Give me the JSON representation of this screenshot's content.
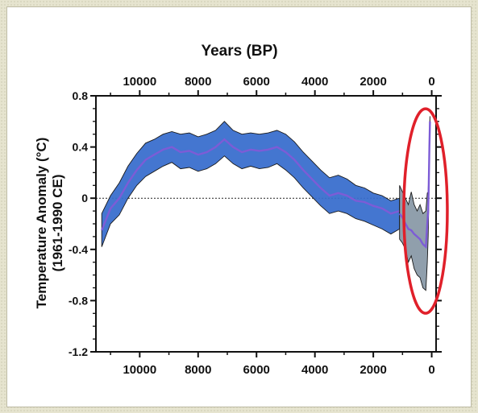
{
  "chart_data": {
    "type": "area",
    "title": "",
    "xlabel_top": "Years (BP)",
    "ylabel_line1": "Temperature Anomaly (°C)",
    "ylabel_line2": "(1961-1990 CE)",
    "x_ticks": [
      10000,
      8000,
      6000,
      4000,
      2000,
      0
    ],
    "y_ticks": [
      0.8,
      0.4,
      0,
      -0.4,
      -0.8,
      -1.2
    ],
    "y_tick_labels": [
      "0.8",
      "0.4",
      "0",
      "-0.4",
      "-0.8",
      "-1.2"
    ],
    "xlim": [
      11500,
      -150
    ],
    "ylim": [
      -1.2,
      0.8
    ],
    "zero_line": "dotted",
    "series": [
      {
        "color": "#3a6fce",
        "mean_color": "#7d5cd6",
        "x": [
          11300,
          11000,
          10700,
          10400,
          10100,
          9800,
          9500,
          9200,
          8900,
          8600,
          8300,
          8000,
          7700,
          7400,
          7100,
          6800,
          6500,
          6200,
          5900,
          5600,
          5300,
          5000,
          4700,
          4400,
          4100,
          3800,
          3500,
          3200,
          2900,
          2600,
          2300,
          2000,
          1700,
          1400,
          1100
        ],
        "mean": [
          -0.25,
          -0.08,
          0.0,
          0.12,
          0.22,
          0.3,
          0.34,
          0.38,
          0.4,
          0.36,
          0.37,
          0.34,
          0.36,
          0.4,
          0.46,
          0.4,
          0.36,
          0.38,
          0.37,
          0.38,
          0.4,
          0.36,
          0.3,
          0.22,
          0.15,
          0.08,
          0.02,
          0.04,
          0.02,
          -0.02,
          -0.03,
          -0.06,
          -0.08,
          -0.12,
          -0.1
        ],
        "upper": [
          -0.12,
          0.02,
          0.12,
          0.25,
          0.35,
          0.43,
          0.46,
          0.5,
          0.52,
          0.5,
          0.51,
          0.48,
          0.5,
          0.53,
          0.6,
          0.53,
          0.5,
          0.51,
          0.5,
          0.51,
          0.53,
          0.5,
          0.44,
          0.36,
          0.29,
          0.22,
          0.16,
          0.18,
          0.15,
          0.1,
          0.08,
          0.04,
          0.02,
          -0.02,
          0.0
        ],
        "lower": [
          -0.38,
          -0.2,
          -0.13,
          0.0,
          0.1,
          0.17,
          0.21,
          0.25,
          0.28,
          0.23,
          0.24,
          0.21,
          0.23,
          0.27,
          0.33,
          0.27,
          0.23,
          0.25,
          0.23,
          0.24,
          0.27,
          0.22,
          0.16,
          0.08,
          0.01,
          -0.06,
          -0.12,
          -0.1,
          -0.12,
          -0.16,
          -0.18,
          -0.21,
          -0.24,
          -0.28,
          -0.24
        ]
      },
      {
        "color": "#8a9aa8",
        "mean_color": "#7d5cd6",
        "x": [
          1100,
          1000,
          900,
          800,
          700,
          600,
          500,
          400,
          300,
          200,
          150,
          120,
          100,
          80,
          60
        ],
        "mean": [
          -0.12,
          -0.15,
          -0.2,
          -0.24,
          -0.25,
          -0.28,
          -0.3,
          -0.32,
          -0.36,
          -0.38,
          -0.2,
          -0.1,
          0.1,
          0.4,
          0.6
        ],
        "upper": [
          0.1,
          0.05,
          0.0,
          -0.05,
          0.05,
          -0.05,
          -0.1,
          -0.05,
          -0.12,
          -0.1,
          0.04,
          0.05,
          0.2,
          0.5,
          0.64
        ],
        "lower": [
          -0.32,
          -0.35,
          -0.4,
          -0.5,
          -0.45,
          -0.55,
          -0.6,
          -0.62,
          -0.7,
          -0.72,
          -0.5,
          -0.3,
          -0.05,
          0.3,
          0.55
        ]
      }
    ],
    "annotation": {
      "shape": "ellipse",
      "color": "#e0202a",
      "x_center": 100,
      "y_center": -0.1
    }
  }
}
